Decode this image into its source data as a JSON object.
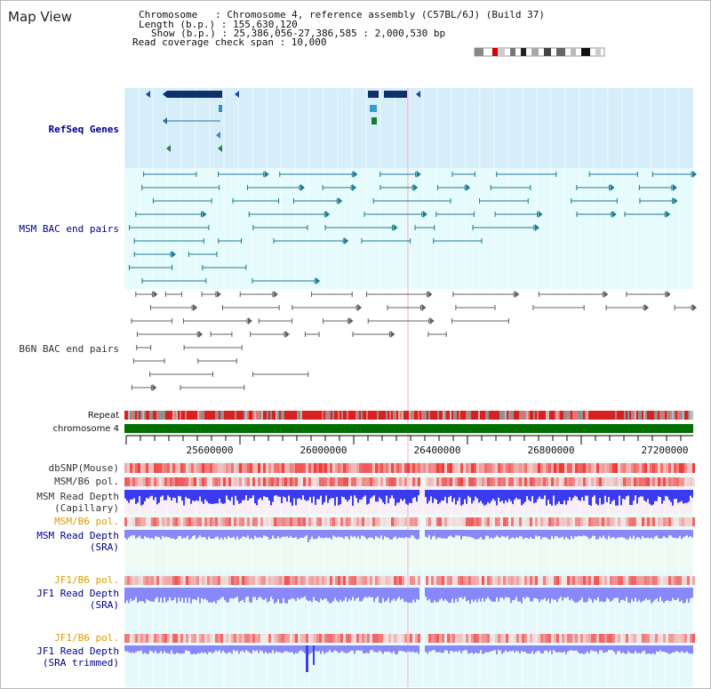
{
  "title": "Map View",
  "info": {
    "chromosome": "Chromosome   : Chromosome 4, reference assembly (C57BL/6J) (Build 37)",
    "length": "Length (b.p.) : 155,630,120",
    "show": "Show (b.p.) : 25,386,056-27,386,585 : 2,000,530 bp",
    "coverage": "Read coverage check span : 10,000"
  },
  "tracks": {
    "refseq": "RefSeq Genes",
    "msm_bac": "MSM BAC end pairs",
    "b6n_bac": "B6N BAC end pairs",
    "repeat": "Repeat",
    "chromosome": "chromosome 4",
    "dbsnp": "dbSNP(Mouse)",
    "msm_b6_pol_1": "MSM/B6 pol.",
    "msm_depth_cap_1": "MSM Read Depth",
    "msm_depth_cap_2": "(Capillary)",
    "msm_b6_pol_2": "MSM/B6 pol.",
    "msm_depth_sra_1": "MSM Read Depth",
    "msm_depth_sra_2": "(SRA)",
    "jf1_b6_pol_1": "JF1/B6 pol.",
    "jf1_depth_sra_1": "JF1 Read Depth",
    "jf1_depth_sra_2": "(SRA)",
    "jf1_b6_pol_2": "JF1/B6 pol.",
    "jf1_depth_trim_1": "JF1 Read Depth",
    "jf1_depth_trim_2": "(SRA trimmed)"
  },
  "ruler": {
    "ticks": [
      "25600000",
      "26000000",
      "26400000",
      "26800000",
      "27200000"
    ]
  },
  "colors": {
    "refseq_bg": "#d6eefa",
    "bac_bg": "#e6fbfb",
    "refseq_gene": "#10306a",
    "msm_feature": "#1c7a90",
    "b6n_feature": "#606060",
    "chromosome_bar": "#007000",
    "depth_blue": "#3a3af0",
    "depth_light": "#8888f8",
    "highlight_line": "#f4a8c8"
  }
}
